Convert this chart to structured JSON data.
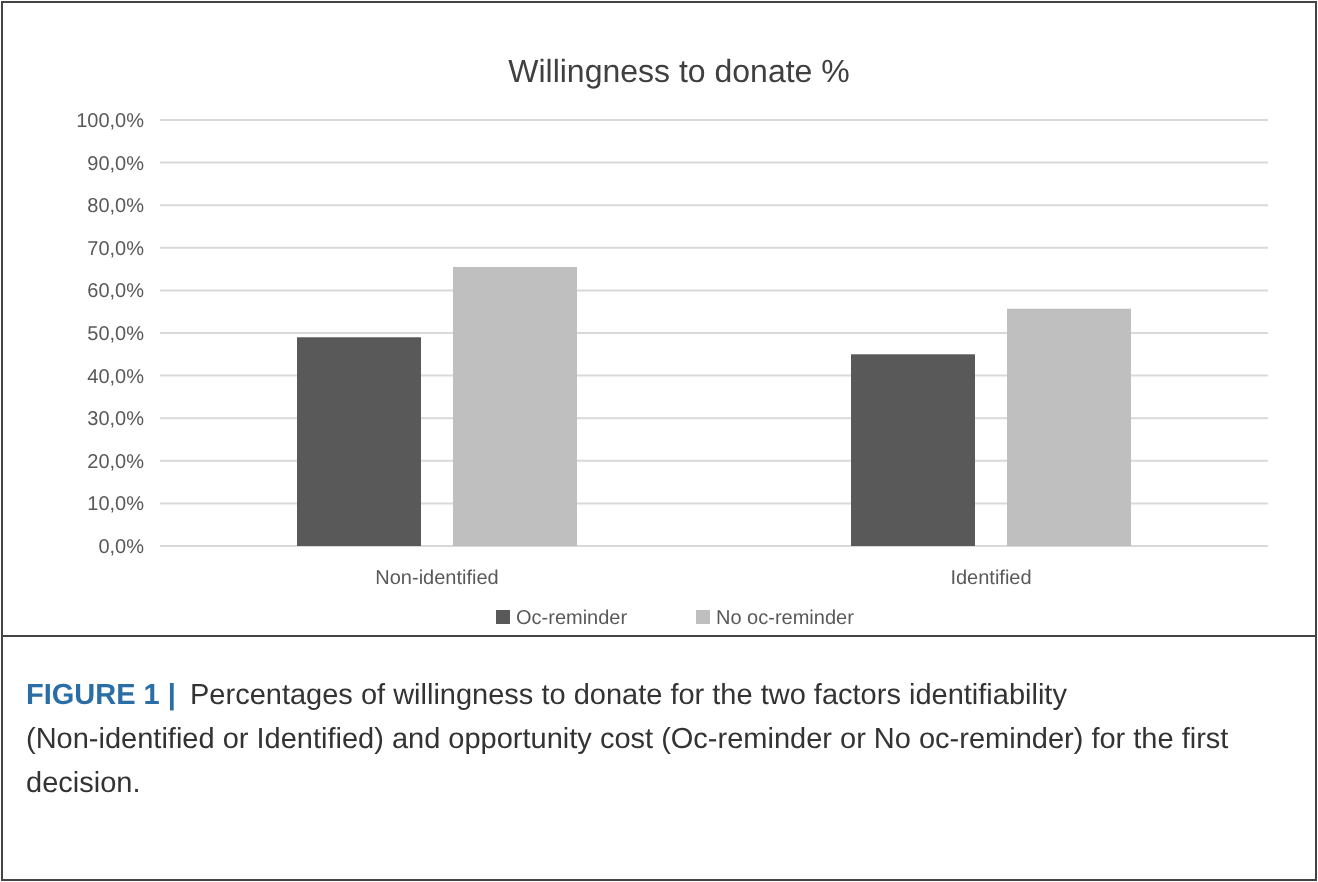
{
  "chart_data": {
    "type": "bar",
    "title": "Willingness to donate %",
    "categories": [
      "Non-identified",
      "Identified"
    ],
    "series": [
      {
        "name": "Oc-reminder",
        "color": "#595959",
        "values": [
          49,
          45
        ]
      },
      {
        "name": "No oc-reminder",
        "color": "#bfbfbf",
        "values": [
          65.5,
          55.7
        ]
      }
    ],
    "ylim": [
      0,
      100
    ],
    "yticks": [
      {
        "value": 0,
        "label": "0,0%"
      },
      {
        "value": 10,
        "label": "10,0%"
      },
      {
        "value": 20,
        "label": "20,0%"
      },
      {
        "value": 30,
        "label": "30,0%"
      },
      {
        "value": 40,
        "label": "40,0%"
      },
      {
        "value": 50,
        "label": "50,0%"
      },
      {
        "value": 60,
        "label": "60,0%"
      },
      {
        "value": 70,
        "label": "70,0%"
      },
      {
        "value": 80,
        "label": "80,0%"
      },
      {
        "value": 90,
        "label": "90,0%"
      },
      {
        "value": 100,
        "label": "100,0%"
      }
    ],
    "grid": "y",
    "legend": "bottom",
    "annotations": [
      "FIGURE 1 |",
      "Percentages of willingness to donate for the two factors identifiability (Non-identified or Identified) and opportunity cost (Oc-reminder or No oc-reminder) for the first decision."
    ]
  }
}
